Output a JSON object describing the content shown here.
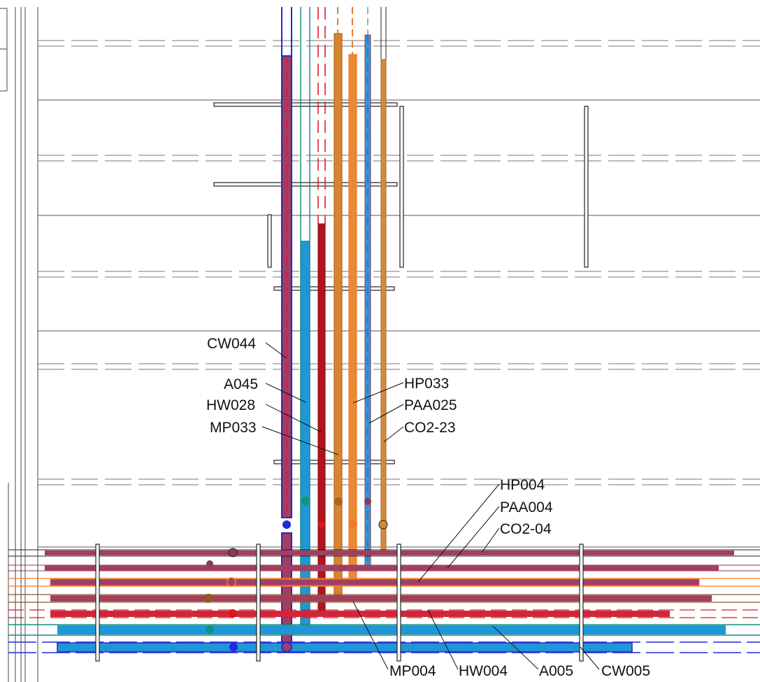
{
  "drawing": {
    "vertical_pipes": [
      {
        "id": "CW044",
        "label": "CW044",
        "color": "#a23e62",
        "edge": "#1f2bd8"
      },
      {
        "id": "A045",
        "label": "A045",
        "color": "#2196d6",
        "edge": "#16907f"
      },
      {
        "id": "HW028",
        "label": "HW028",
        "color": "#b3131e",
        "edge": "#e0141c"
      },
      {
        "id": "MP033",
        "label": "MP033",
        "color": "#d9842f",
        "edge": "#a96624"
      },
      {
        "id": "HP033",
        "label": "HP033",
        "color": "#e78a35",
        "edge": "#f07a2a"
      },
      {
        "id": "PAA025",
        "label": "PAA025",
        "color": "#2c9ad8",
        "edge": "#8a3b5a"
      },
      {
        "id": "CO2-23",
        "label": "CO2-23",
        "color": "#d28a3a",
        "edge": "#202020"
      }
    ],
    "horizontal_pipes": [
      {
        "id": "CO2-04",
        "label": "CO2-04",
        "color": "#a23e62",
        "edge": "#202020"
      },
      {
        "id": "PAA004",
        "label": "PAA004",
        "color": "#a23e62",
        "edge": "#8a3b5a"
      },
      {
        "id": "HP004",
        "label": "HP004",
        "color": "#a23e62",
        "edge": "#f07a2a"
      },
      {
        "id": "MP004",
        "label": "MP004",
        "color": "#a23e62",
        "edge": "#8a5a20"
      },
      {
        "id": "HW004",
        "label": "HW004",
        "color": "#d1263a",
        "edge": "#e0141c"
      },
      {
        "id": "A005",
        "label": "A005",
        "color": "#2196d6",
        "edge": "#16907f"
      },
      {
        "id": "CW005",
        "label": "CW005",
        "color": "#2196d6",
        "edge": "#1f2bd8"
      }
    ]
  }
}
